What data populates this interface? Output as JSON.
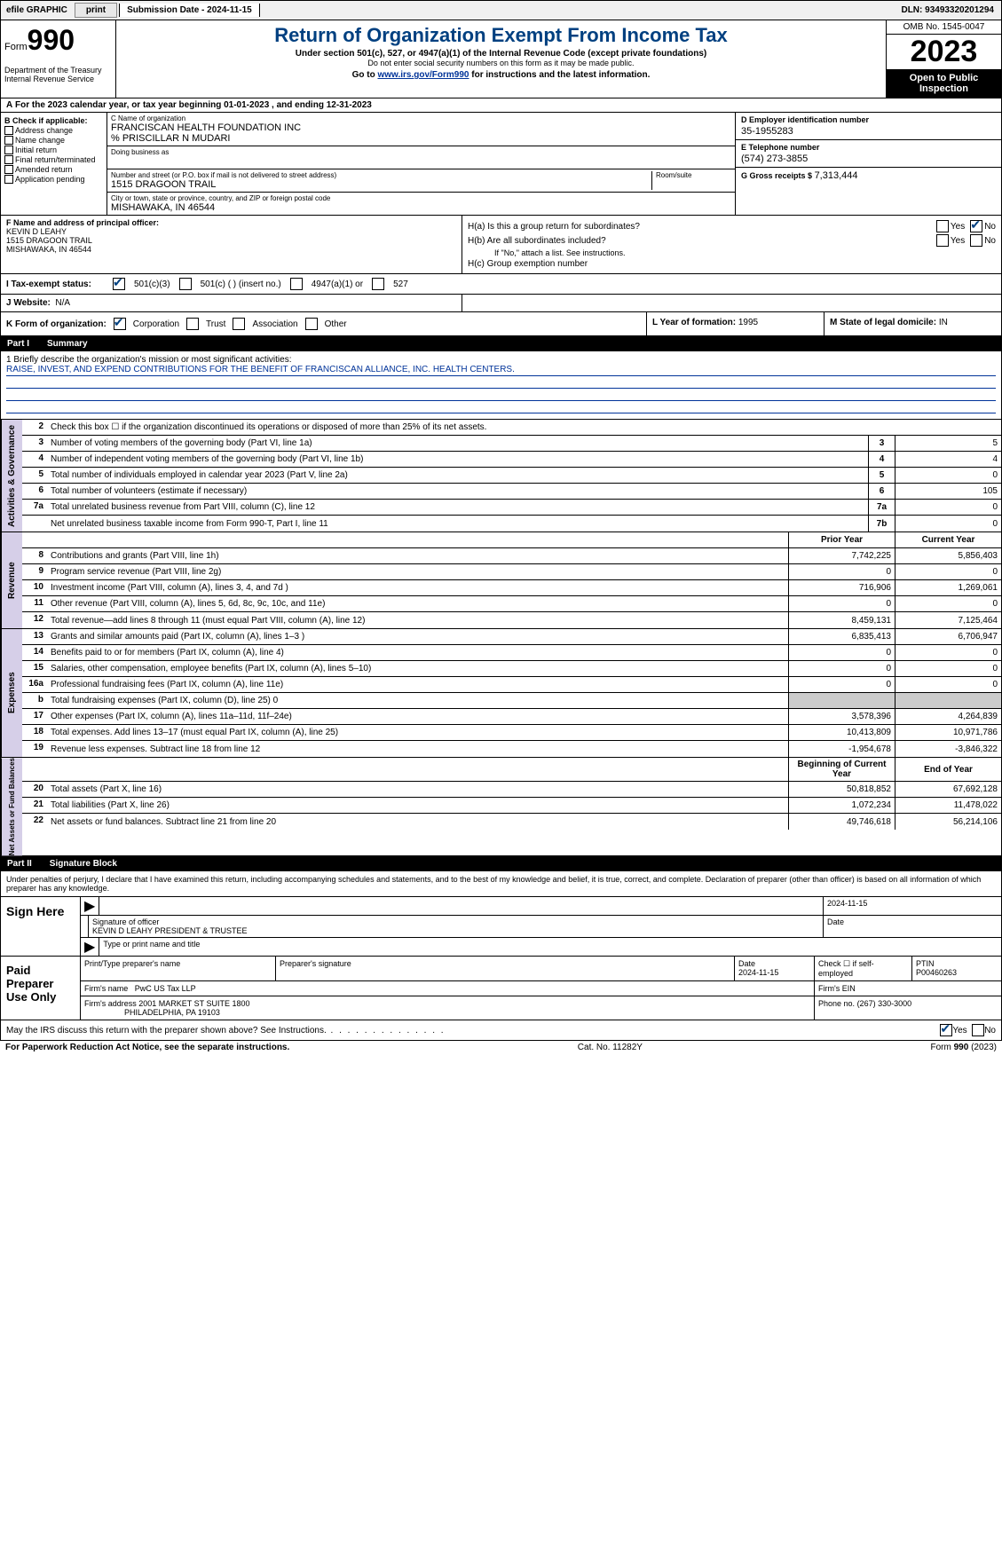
{
  "topbar": {
    "efile": "efile GRAPHIC",
    "print_btn": "print",
    "submission": "Submission Date - 2024-11-15",
    "dln": "DLN: 93493320201294"
  },
  "header": {
    "form_prefix": "Form",
    "form_number": "990",
    "dept": "Department of the Treasury Internal Revenue Service",
    "title": "Return of Organization Exempt From Income Tax",
    "sub": "Under section 501(c), 527, or 4947(a)(1) of the Internal Revenue Code (except private foundations)",
    "sub2": "Do not enter social security numbers on this form as it may be made public.",
    "goto_pre": "Go to ",
    "goto_link": "www.irs.gov/Form990",
    "goto_post": " for instructions and the latest information.",
    "omb": "OMB No. 1545-0047",
    "year": "2023",
    "open": "Open to Public Inspection"
  },
  "row_a": "For the 2023 calendar year, or tax year beginning 01-01-2023   , and ending 12-31-2023",
  "col_b": {
    "label": "B Check if applicable:",
    "opts": [
      "Address change",
      "Name change",
      "Initial return",
      "Final return/terminated",
      "Amended return",
      "Application pending"
    ]
  },
  "col_c": {
    "name_lbl": "C Name of organization",
    "name": "FRANCISCAN HEALTH FOUNDATION INC",
    "care": "% PRISCILLAR N MUDARI",
    "dba_lbl": "Doing business as",
    "addr_lbl": "Number and street (or P.O. box if mail is not delivered to street address)",
    "room_lbl": "Room/suite",
    "addr": "1515 DRAGOON TRAIL",
    "city_lbl": "City or town, state or province, country, and ZIP or foreign postal code",
    "city": "MISHAWAKA, IN  46544"
  },
  "col_d": {
    "lbl": "D Employer identification number",
    "val": "35-1955283"
  },
  "col_e": {
    "lbl": "E Telephone number",
    "val": "(574) 273-3855"
  },
  "col_g": {
    "lbl": "G Gross receipts $",
    "val": "7,313,444"
  },
  "col_f": {
    "lbl": "F  Name and address of principal officer:",
    "name": "KEVIN D LEAHY",
    "addr": "1515 DRAGOON TRAIL",
    "city": "MISHAWAKA, IN  46544"
  },
  "col_h": {
    "a_lbl": "H(a)  Is this a group return for subordinates?",
    "b_lbl": "H(b)  Are all subordinates included?",
    "b_note": "If \"No,\" attach a list. See instructions.",
    "c_lbl": "H(c)  Group exemption number",
    "yes": "Yes",
    "no": "No"
  },
  "tax_status": {
    "label": "I   Tax-exempt status:",
    "o501c3": "501(c)(3)",
    "o501c": "501(c) (  ) (insert no.)",
    "o4947": "4947(a)(1) or",
    "o527": "527"
  },
  "website": {
    "lbl": "J   Website:",
    "val": "N/A"
  },
  "k": {
    "lbl": "K Form of organization:",
    "corp": "Corporation",
    "trust": "Trust",
    "assoc": "Association",
    "other": "Other"
  },
  "l": {
    "lbl": "L Year of formation:",
    "val": "1995"
  },
  "m": {
    "lbl": "M State of legal domicile:",
    "val": "IN"
  },
  "part1": {
    "num": "Part I",
    "title": "Summary"
  },
  "mission": {
    "q": "1  Briefly describe the organization's mission or most significant activities:",
    "ans": "RAISE, INVEST, AND EXPEND CONTRIBUTIONS FOR THE BENEFIT OF FRANCISCAN ALLIANCE, INC. HEALTH CENTERS."
  },
  "sections": {
    "gov": "Activities & Governance",
    "rev": "Revenue",
    "exp": "Expenses",
    "net": "Net Assets or Fund Balances"
  },
  "gov_rows": [
    {
      "n": "2",
      "d": "Check this box ☐  if the organization discontinued its operations or disposed of more than 25% of its net assets.",
      "box": "",
      "v": ""
    },
    {
      "n": "3",
      "d": "Number of voting members of the governing body (Part VI, line 1a)",
      "box": "3",
      "v": "5"
    },
    {
      "n": "4",
      "d": "Number of independent voting members of the governing body (Part VI, line 1b)",
      "box": "4",
      "v": "4"
    },
    {
      "n": "5",
      "d": "Total number of individuals employed in calendar year 2023 (Part V, line 2a)",
      "box": "5",
      "v": "0"
    },
    {
      "n": "6",
      "d": "Total number of volunteers (estimate if necessary)",
      "box": "6",
      "v": "105"
    },
    {
      "n": "7a",
      "d": "Total unrelated business revenue from Part VIII, column (C), line 12",
      "box": "7a",
      "v": "0"
    },
    {
      "n": "",
      "d": "Net unrelated business taxable income from Form 990-T, Part I, line 11",
      "box": "7b",
      "v": "0"
    }
  ],
  "rev_hdr": {
    "prior": "Prior Year",
    "current": "Current Year"
  },
  "rev_rows": [
    {
      "n": "8",
      "d": "Contributions and grants (Part VIII, line 1h)",
      "p": "7,742,225",
      "c": "5,856,403"
    },
    {
      "n": "9",
      "d": "Program service revenue (Part VIII, line 2g)",
      "p": "0",
      "c": "0"
    },
    {
      "n": "10",
      "d": "Investment income (Part VIII, column (A), lines 3, 4, and 7d )",
      "p": "716,906",
      "c": "1,269,061"
    },
    {
      "n": "11",
      "d": "Other revenue (Part VIII, column (A), lines 5, 6d, 8c, 9c, 10c, and 11e)",
      "p": "0",
      "c": "0"
    },
    {
      "n": "12",
      "d": "Total revenue—add lines 8 through 11 (must equal Part VIII, column (A), line 12)",
      "p": "8,459,131",
      "c": "7,125,464"
    }
  ],
  "exp_rows": [
    {
      "n": "13",
      "d": "Grants and similar amounts paid (Part IX, column (A), lines 1–3 )",
      "p": "6,835,413",
      "c": "6,706,947"
    },
    {
      "n": "14",
      "d": "Benefits paid to or for members (Part IX, column (A), line 4)",
      "p": "0",
      "c": "0"
    },
    {
      "n": "15",
      "d": "Salaries, other compensation, employee benefits (Part IX, column (A), lines 5–10)",
      "p": "0",
      "c": "0"
    },
    {
      "n": "16a",
      "d": "Professional fundraising fees (Part IX, column (A), line 11e)",
      "p": "0",
      "c": "0"
    },
    {
      "n": "b",
      "d": "Total fundraising expenses (Part IX, column (D), line 25) 0",
      "p": "",
      "c": "",
      "shade": true
    },
    {
      "n": "17",
      "d": "Other expenses (Part IX, column (A), lines 11a–11d, 11f–24e)",
      "p": "3,578,396",
      "c": "4,264,839"
    },
    {
      "n": "18",
      "d": "Total expenses. Add lines 13–17 (must equal Part IX, column (A), line 25)",
      "p": "10,413,809",
      "c": "10,971,786"
    },
    {
      "n": "19",
      "d": "Revenue less expenses. Subtract line 18 from line 12",
      "p": "-1,954,678",
      "c": "-3,846,322"
    }
  ],
  "net_hdr": {
    "begin": "Beginning of Current Year",
    "end": "End of Year"
  },
  "net_rows": [
    {
      "n": "20",
      "d": "Total assets (Part X, line 16)",
      "p": "50,818,852",
      "c": "67,692,128"
    },
    {
      "n": "21",
      "d": "Total liabilities (Part X, line 26)",
      "p": "1,072,234",
      "c": "11,478,022"
    },
    {
      "n": "22",
      "d": "Net assets or fund balances. Subtract line 21 from line 20",
      "p": "49,746,618",
      "c": "56,214,106"
    }
  ],
  "part2": {
    "num": "Part II",
    "title": "Signature Block"
  },
  "sig_intro": "Under penalties of perjury, I declare that I have examined this return, including accompanying schedules and statements, and to the best of my knowledge and belief, it is true, correct, and complete. Declaration of preparer (other than officer) is based on all information of which preparer has any knowledge.",
  "sign": {
    "lbl": "Sign Here",
    "date": "2024-11-15",
    "sig_lbl": "Signature of officer",
    "name": "KEVIN D LEAHY  PRESIDENT & TRUSTEE",
    "type_lbl": "Type or print name and title",
    "date_lbl": "Date"
  },
  "prep": {
    "lbl": "Paid Preparer Use Only",
    "h_name": "Print/Type preparer's name",
    "h_sig": "Preparer's signature",
    "h_date": "Date",
    "date": "2024-11-15",
    "h_check": "Check ☐ if self-employed",
    "h_ptin": "PTIN",
    "ptin": "P00460263",
    "firm_name_lbl": "Firm's name",
    "firm_name": "PwC US Tax LLP",
    "firm_ein_lbl": "Firm's EIN",
    "firm_addr_lbl": "Firm's address",
    "firm_addr": "2001 MARKET ST SUITE 1800",
    "firm_city": "PHILADELPHIA, PA  19103",
    "phone_lbl": "Phone no.",
    "phone": "(267) 330-3000"
  },
  "discuss": {
    "q": "May the IRS discuss this return with the preparer shown above? See Instructions.",
    "yes": "Yes",
    "no": "No"
  },
  "footer": {
    "pra": "For Paperwork Reduction Act Notice, see the separate instructions.",
    "cat": "Cat. No. 11282Y",
    "form": "Form 990 (2023)"
  },
  "colors": {
    "accent": "#004080",
    "link": "#003399",
    "side_bg": "#d6cfe8",
    "shade": "#cccccc"
  }
}
